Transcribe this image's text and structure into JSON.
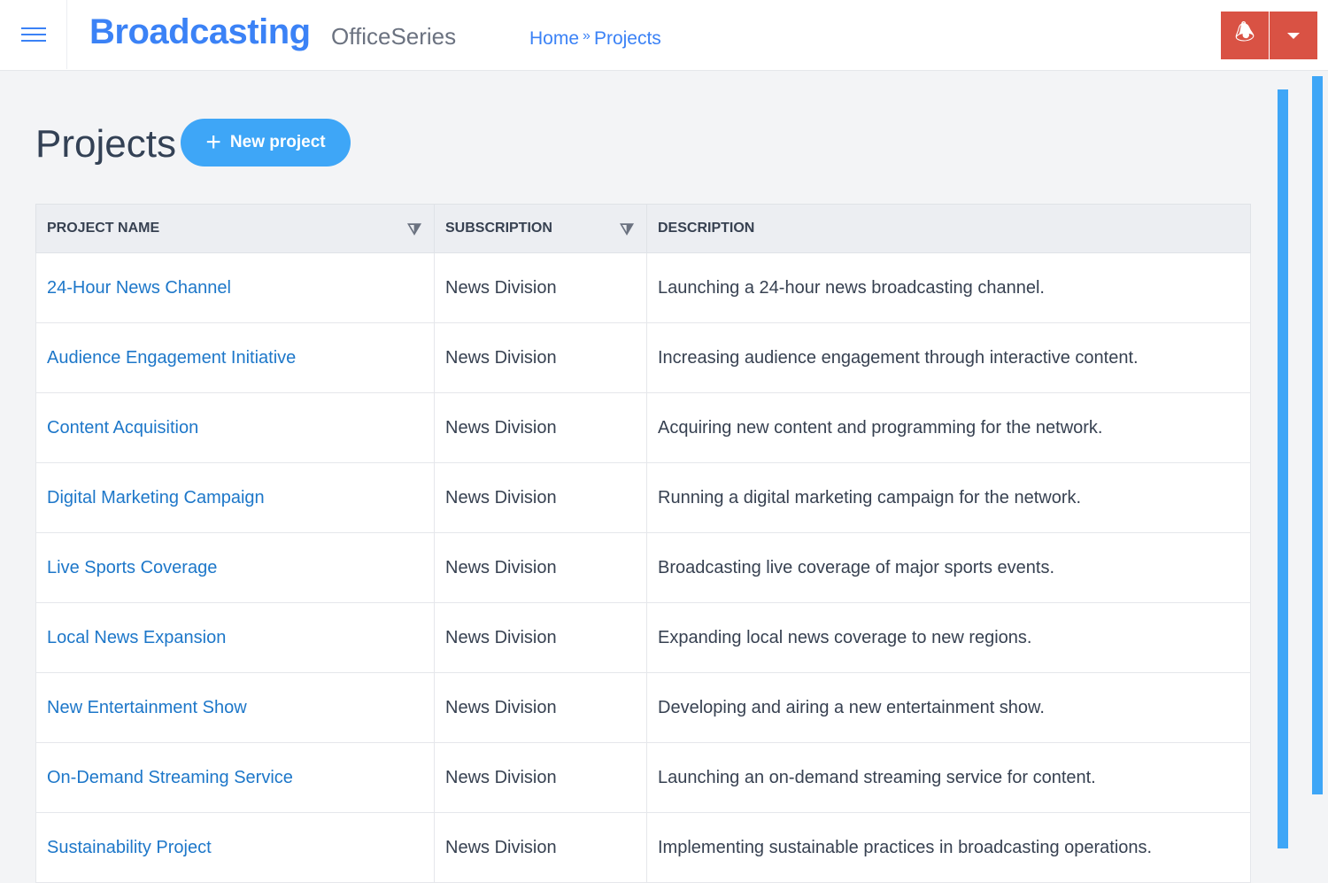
{
  "header": {
    "brand": "Broadcasting",
    "suite": "OfficeSeries",
    "breadcrumb": [
      "Home",
      "Projects"
    ],
    "breadcrumb_sep": "»",
    "accent": "#3b82f6",
    "alert_color": "#d95244"
  },
  "page": {
    "title": "Projects",
    "new_button": "New project"
  },
  "table": {
    "columns": [
      "PROJECT NAME",
      "SUBSCRIPTION",
      "DESCRIPTION"
    ],
    "rows": [
      {
        "name": "24-Hour News Channel",
        "subscription": "News Division",
        "description": "Launching a 24-hour news broadcasting channel."
      },
      {
        "name": "Audience Engagement Initiative",
        "subscription": "News Division",
        "description": "Increasing audience engagement through interactive content."
      },
      {
        "name": "Content Acquisition",
        "subscription": "News Division",
        "description": "Acquiring new content and programming for the network."
      },
      {
        "name": "Digital Marketing Campaign",
        "subscription": "News Division",
        "description": "Running a digital marketing campaign for the network."
      },
      {
        "name": "Live Sports Coverage",
        "subscription": "News Division",
        "description": "Broadcasting live coverage of major sports events."
      },
      {
        "name": "Local News Expansion",
        "subscription": "News Division",
        "description": "Expanding local news coverage to new regions."
      },
      {
        "name": "New Entertainment Show",
        "subscription": "News Division",
        "description": "Developing and airing a new entertainment show."
      },
      {
        "name": "On-Demand Streaming Service",
        "subscription": "News Division",
        "description": "Launching an on-demand streaming service for content."
      },
      {
        "name": "Sustainability Project",
        "subscription": "News Division",
        "description": "Implementing sustainable practices in broadcasting operations."
      }
    ]
  }
}
